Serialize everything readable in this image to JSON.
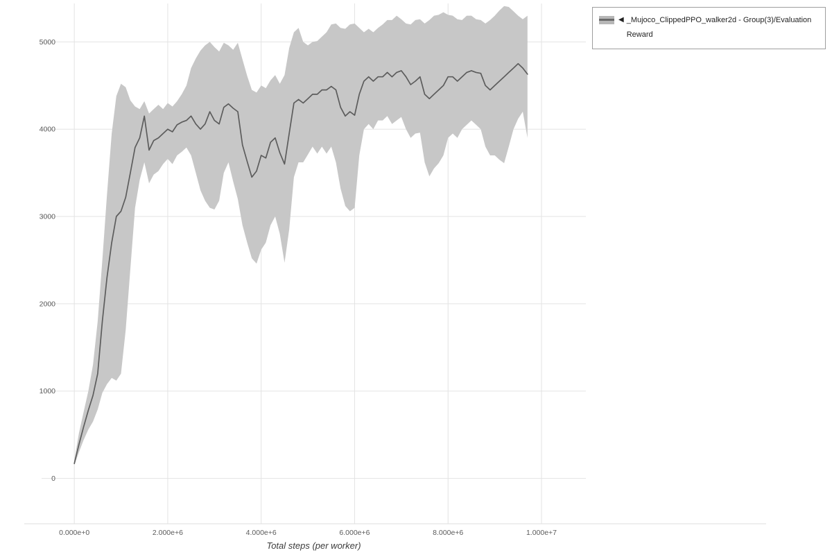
{
  "page": {
    "background": "#ffffff"
  },
  "colors": {
    "grid": "#e3e3e3",
    "plot_frame": "#dddddd",
    "axis_text": "#5a5a5a",
    "axis_title_text": "#3c3c3c",
    "legend_border": "#9e9e9e"
  },
  "legend": {
    "collapse_icon": "◀",
    "entries": [
      {
        "label": "_Mujoco_ClippedPPO_walker2d - Group(3)/Evaluation Reward"
      }
    ]
  },
  "chart_data": {
    "type": "line",
    "title": "",
    "xlabel": "Total steps (per worker)",
    "ylabel": "",
    "grid": true,
    "legend_position": "top-right-outside",
    "xlim": [
      -700000,
      10950000
    ],
    "ylim": [
      -520,
      5440
    ],
    "xticks": [
      {
        "value": 0,
        "label": "0.000e+0"
      },
      {
        "value": 2000000,
        "label": "2.000e+6"
      },
      {
        "value": 4000000,
        "label": "4.000e+6"
      },
      {
        "value": 6000000,
        "label": "6.000e+6"
      },
      {
        "value": 8000000,
        "label": "8.000e+6"
      },
      {
        "value": 10000000,
        "label": "1.000e+7"
      }
    ],
    "yticks": [
      {
        "value": 0,
        "label": "0"
      },
      {
        "value": 1000,
        "label": "1000"
      },
      {
        "value": 2000,
        "label": "2000"
      },
      {
        "value": 3000,
        "label": "3000"
      },
      {
        "value": 4000,
        "label": "4000"
      },
      {
        "value": 5000,
        "label": "5000"
      }
    ],
    "series": [
      {
        "name": "_Mujoco_ClippedPPO_walker2d - Group(3)/Evaluation Reward",
        "line_color": "#5c5c5c",
        "band_color": "#c7c7c7",
        "x": [
          0,
          100000,
          200000,
          300000,
          400000,
          500000,
          600000,
          700000,
          800000,
          900000,
          1000000,
          1100000,
          1200000,
          1300000,
          1400000,
          1500000,
          1600000,
          1700000,
          1800000,
          1900000,
          2000000,
          2100000,
          2200000,
          2300000,
          2400000,
          2500000,
          2600000,
          2700000,
          2800000,
          2900000,
          3000000,
          3100000,
          3200000,
          3300000,
          3400000,
          3500000,
          3600000,
          3700000,
          3800000,
          3900000,
          4000000,
          4100000,
          4200000,
          4300000,
          4400000,
          4500000,
          4600000,
          4700000,
          4800000,
          4900000,
          5000000,
          5100000,
          5200000,
          5300000,
          5400000,
          5500000,
          5600000,
          5700000,
          5800000,
          5900000,
          6000000,
          6100000,
          6200000,
          6300000,
          6400000,
          6500000,
          6600000,
          6700000,
          6800000,
          6900000,
          7000000,
          7100000,
          7200000,
          7300000,
          7400000,
          7500000,
          7600000,
          7700000,
          7800000,
          7900000,
          8000000,
          8100000,
          8200000,
          8300000,
          8400000,
          8500000,
          8600000,
          8700000,
          8800000,
          8900000,
          9000000,
          9100000,
          9200000,
          9300000,
          9400000,
          9500000,
          9600000,
          9700000
        ],
        "mean": [
          170,
          390,
          590,
          780,
          950,
          1200,
          1800,
          2300,
          2700,
          3000,
          3060,
          3220,
          3500,
          3790,
          3900,
          4150,
          3760,
          3870,
          3900,
          3950,
          4000,
          3970,
          4050,
          4080,
          4100,
          4150,
          4060,
          4000,
          4060,
          4200,
          4100,
          4060,
          4250,
          4290,
          4240,
          4200,
          3820,
          3630,
          3450,
          3520,
          3700,
          3670,
          3850,
          3900,
          3730,
          3600,
          3950,
          4300,
          4340,
          4300,
          4350,
          4400,
          4400,
          4450,
          4450,
          4490,
          4450,
          4250,
          4150,
          4200,
          4160,
          4400,
          4550,
          4600,
          4550,
          4600,
          4600,
          4650,
          4600,
          4650,
          4670,
          4600,
          4510,
          4550,
          4600,
          4400,
          4350,
          4400,
          4450,
          4500,
          4600,
          4600,
          4550,
          4600,
          4650,
          4670,
          4650,
          4640,
          4500,
          4450,
          4500,
          4550,
          4600,
          4650,
          4700,
          4750,
          4700,
          4630
        ],
        "lower": [
          155,
          300,
          440,
          560,
          650,
          790,
          980,
          1080,
          1150,
          1120,
          1200,
          1700,
          2400,
          3100,
          3420,
          3620,
          3380,
          3480,
          3520,
          3600,
          3660,
          3600,
          3700,
          3740,
          3790,
          3700,
          3500,
          3300,
          3180,
          3100,
          3080,
          3180,
          3500,
          3620,
          3400,
          3200,
          2900,
          2700,
          2520,
          2460,
          2620,
          2700,
          2900,
          3000,
          2800,
          2470,
          2850,
          3450,
          3620,
          3620,
          3710,
          3800,
          3720,
          3800,
          3720,
          3800,
          3620,
          3320,
          3120,
          3060,
          3100,
          3700,
          4000,
          4060,
          4000,
          4100,
          4100,
          4150,
          4060,
          4100,
          4140,
          4000,
          3900,
          3950,
          3960,
          3620,
          3460,
          3550,
          3610,
          3700,
          3900,
          3950,
          3900,
          4000,
          4050,
          4100,
          4050,
          4000,
          3800,
          3700,
          3700,
          3650,
          3610,
          3800,
          4000,
          4120,
          4200,
          3900
        ],
        "upper": [
          210,
          520,
          760,
          1000,
          1300,
          1800,
          2500,
          3250,
          3950,
          4380,
          4520,
          4480,
          4330,
          4260,
          4230,
          4320,
          4180,
          4230,
          4280,
          4230,
          4300,
          4260,
          4320,
          4400,
          4500,
          4700,
          4810,
          4900,
          4960,
          5000,
          4940,
          4890,
          4990,
          4960,
          4910,
          4990,
          4800,
          4610,
          4450,
          4420,
          4500,
          4470,
          4560,
          4620,
          4520,
          4620,
          4930,
          5110,
          5160,
          5000,
          4960,
          5000,
          5010,
          5060,
          5110,
          5200,
          5210,
          5160,
          5150,
          5200,
          5210,
          5160,
          5110,
          5150,
          5110,
          5160,
          5200,
          5250,
          5250,
          5300,
          5260,
          5210,
          5200,
          5250,
          5260,
          5210,
          5250,
          5300,
          5310,
          5340,
          5310,
          5300,
          5260,
          5250,
          5300,
          5300,
          5260,
          5250,
          5210,
          5250,
          5300,
          5360,
          5410,
          5400,
          5350,
          5300,
          5260,
          5300
        ]
      }
    ]
  }
}
